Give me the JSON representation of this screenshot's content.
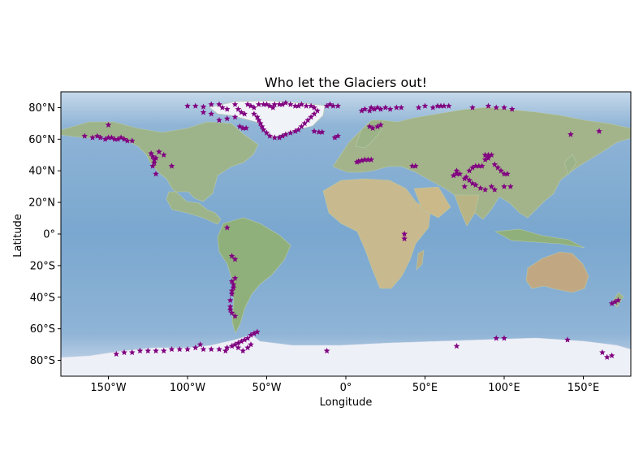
{
  "title": "Who let the Glaciers out!",
  "xlabel": "Longitude",
  "ylabel": "Latitude",
  "colors": {
    "ocean": "#7fa8cf",
    "land": "#9cb58a",
    "ice": "#edf0f7",
    "marker": "#800080"
  },
  "map": {
    "projection": "PlateCarree",
    "xlim": [
      -180,
      180
    ],
    "ylim": [
      -90,
      90
    ],
    "xticks": [
      {
        "value": -150,
        "label": "150°W"
      },
      {
        "value": -100,
        "label": "100°W"
      },
      {
        "value": -50,
        "label": "50°W"
      },
      {
        "value": 0,
        "label": "0°"
      },
      {
        "value": 50,
        "label": "50°E"
      },
      {
        "value": 100,
        "label": "100°E"
      },
      {
        "value": 150,
        "label": "150°E"
      }
    ],
    "yticks": [
      {
        "value": 80,
        "label": "80°N"
      },
      {
        "value": 60,
        "label": "60°N"
      },
      {
        "value": 40,
        "label": "40°N"
      },
      {
        "value": 20,
        "label": "20°N"
      },
      {
        "value": 0,
        "label": "0°"
      },
      {
        "value": -20,
        "label": "20°S"
      },
      {
        "value": -40,
        "label": "40°S"
      },
      {
        "value": -60,
        "label": "60°S"
      },
      {
        "value": -80,
        "label": "80°S"
      }
    ]
  },
  "chart_data": {
    "type": "scatter",
    "marker": "star",
    "color": "#800080",
    "points": [
      [
        -100,
        81
      ],
      [
        -95,
        81
      ],
      [
        -90,
        80.5
      ],
      [
        -85,
        82
      ],
      [
        -80,
        82
      ],
      [
        -78,
        80
      ],
      [
        -75,
        79
      ],
      [
        -70,
        82
      ],
      [
        -68,
        79
      ],
      [
        -66,
        77
      ],
      [
        -64,
        76
      ],
      [
        -62,
        82
      ],
      [
        -60,
        81
      ],
      [
        -58,
        80
      ],
      [
        -55,
        82
      ],
      [
        -52,
        82
      ],
      [
        -50,
        82
      ],
      [
        -48,
        81
      ],
      [
        -46,
        80
      ],
      [
        -45,
        82
      ],
      [
        -42,
        82
      ],
      [
        -40,
        82
      ],
      [
        -38,
        83
      ],
      [
        -35,
        82
      ],
      [
        -32,
        81
      ],
      [
        -30,
        81
      ],
      [
        -28,
        82
      ],
      [
        -25,
        81
      ],
      [
        -22,
        81
      ],
      [
        -20,
        80
      ],
      [
        -18,
        78
      ],
      [
        -20,
        76
      ],
      [
        -22,
        74
      ],
      [
        -24,
        72
      ],
      [
        -26,
        70
      ],
      [
        -28,
        68
      ],
      [
        -30,
        66
      ],
      [
        -32,
        65
      ],
      [
        -35,
        64
      ],
      [
        -38,
        63
      ],
      [
        -40,
        62
      ],
      [
        -42,
        61
      ],
      [
        -45,
        61
      ],
      [
        -48,
        62
      ],
      [
        -50,
        64
      ],
      [
        -52,
        66
      ],
      [
        -53,
        68
      ],
      [
        -54,
        70
      ],
      [
        -55,
        72
      ],
      [
        -56,
        74
      ],
      [
        -58,
        76
      ],
      [
        -67,
        68
      ],
      [
        -65,
        67
      ],
      [
        -63,
        67
      ],
      [
        -80,
        72
      ],
      [
        -75,
        73
      ],
      [
        -70,
        74
      ],
      [
        -85,
        76
      ],
      [
        -90,
        77
      ],
      [
        -10,
        82
      ],
      [
        -12,
        81
      ],
      [
        -8,
        81
      ],
      [
        -5,
        81
      ],
      [
        -20,
        65
      ],
      [
        -17,
        64.5
      ],
      [
        -15,
        64.5
      ],
      [
        -150,
        69
      ],
      [
        -160,
        61
      ],
      [
        -157,
        62
      ],
      [
        -155,
        61
      ],
      [
        -152,
        60
      ],
      [
        -150,
        61
      ],
      [
        -148,
        61
      ],
      [
        -146,
        60
      ],
      [
        -144,
        60
      ],
      [
        -142,
        61
      ],
      [
        -140,
        60
      ],
      [
        -138,
        59
      ],
      [
        -135,
        59
      ],
      [
        -165,
        62
      ],
      [
        -123,
        51
      ],
      [
        -122,
        49
      ],
      [
        -121,
        47
      ],
      [
        -121,
        45
      ],
      [
        -122,
        43
      ],
      [
        -120,
        48
      ],
      [
        -118,
        52
      ],
      [
        -115,
        50
      ],
      [
        -110,
        43
      ],
      [
        -120,
        38
      ],
      [
        -75,
        4
      ],
      [
        -72,
        -14
      ],
      [
        -70,
        -16
      ],
      [
        -72,
        -30
      ],
      [
        -71,
        -34
      ],
      [
        -72,
        -38
      ],
      [
        -73,
        -42
      ],
      [
        -73,
        -46
      ],
      [
        -73,
        -48
      ],
      [
        -72,
        -50
      ],
      [
        -70,
        -52
      ],
      [
        -72,
        -36
      ],
      [
        -70,
        -28
      ],
      [
        -71,
        -32
      ],
      [
        10,
        78
      ],
      [
        12,
        79
      ],
      [
        15,
        78
      ],
      [
        16,
        80
      ],
      [
        18,
        79
      ],
      [
        20,
        80
      ],
      [
        22,
        79
      ],
      [
        25,
        80
      ],
      [
        28,
        79
      ],
      [
        32,
        80
      ],
      [
        35,
        80
      ],
      [
        46,
        80
      ],
      [
        50,
        81
      ],
      [
        55,
        80
      ],
      [
        58,
        81
      ],
      [
        60,
        81
      ],
      [
        62,
        81
      ],
      [
        65,
        81
      ],
      [
        80,
        80
      ],
      [
        90,
        81
      ],
      [
        95,
        80
      ],
      [
        100,
        80
      ],
      [
        105,
        79
      ],
      [
        -5,
        62
      ],
      [
        -7,
        61
      ],
      [
        15,
        68
      ],
      [
        17,
        67
      ],
      [
        20,
        68
      ],
      [
        22,
        69
      ],
      [
        8,
        46
      ],
      [
        7,
        45.5
      ],
      [
        10,
        46.5
      ],
      [
        12,
        47
      ],
      [
        14,
        47
      ],
      [
        16,
        47
      ],
      [
        42,
        43
      ],
      [
        44,
        43
      ],
      [
        70,
        38
      ],
      [
        72,
        38
      ],
      [
        75,
        35
      ],
      [
        78,
        34
      ],
      [
        80,
        32
      ],
      [
        82,
        31
      ],
      [
        85,
        29
      ],
      [
        88,
        28
      ],
      [
        76,
        36
      ],
      [
        78,
        40
      ],
      [
        80,
        42
      ],
      [
        82,
        43
      ],
      [
        84,
        43
      ],
      [
        86,
        43
      ],
      [
        88,
        47
      ],
      [
        90,
        48
      ],
      [
        92,
        50
      ],
      [
        94,
        44
      ],
      [
        96,
        42
      ],
      [
        98,
        40
      ],
      [
        100,
        38
      ],
      [
        102,
        38
      ],
      [
        104,
        30
      ],
      [
        88,
        50
      ],
      [
        90,
        50
      ],
      [
        160,
        65
      ],
      [
        142,
        63
      ],
      [
        100,
        30
      ],
      [
        94,
        28
      ],
      [
        68,
        37
      ],
      [
        75,
        30
      ],
      [
        70,
        40
      ],
      [
        92,
        30
      ],
      [
        37,
        -3
      ],
      [
        37,
        0
      ],
      [
        -145,
        -76
      ],
      [
        -140,
        -75
      ],
      [
        -135,
        -75
      ],
      [
        -130,
        -74
      ],
      [
        -125,
        -74
      ],
      [
        -120,
        -74
      ],
      [
        -115,
        -74
      ],
      [
        -110,
        -73
      ],
      [
        -105,
        -73
      ],
      [
        -100,
        -73
      ],
      [
        -95,
        -72
      ],
      [
        -90,
        -73
      ],
      [
        -85,
        -73
      ],
      [
        -80,
        -73
      ],
      [
        -75,
        -72
      ],
      [
        -72,
        -71
      ],
      [
        -70,
        -70
      ],
      [
        -68,
        -69
      ],
      [
        -66,
        -68
      ],
      [
        -64,
        -67
      ],
      [
        -62,
        -66
      ],
      [
        -60,
        -64
      ],
      [
        -58,
        -63
      ],
      [
        -56,
        -62
      ],
      [
        -60,
        -70
      ],
      [
        -62,
        -72
      ],
      [
        -65,
        -74
      ],
      [
        -68,
        -72
      ],
      [
        -76,
        -74
      ],
      [
        -92,
        -70
      ],
      [
        -12,
        -74
      ],
      [
        70,
        -71
      ],
      [
        95,
        -66
      ],
      [
        100,
        -66
      ],
      [
        140,
        -67
      ],
      [
        162,
        -75
      ],
      [
        165,
        -78
      ],
      [
        168,
        -77
      ],
      [
        170,
        -43
      ],
      [
        168,
        -44
      ],
      [
        172,
        -42
      ]
    ]
  }
}
